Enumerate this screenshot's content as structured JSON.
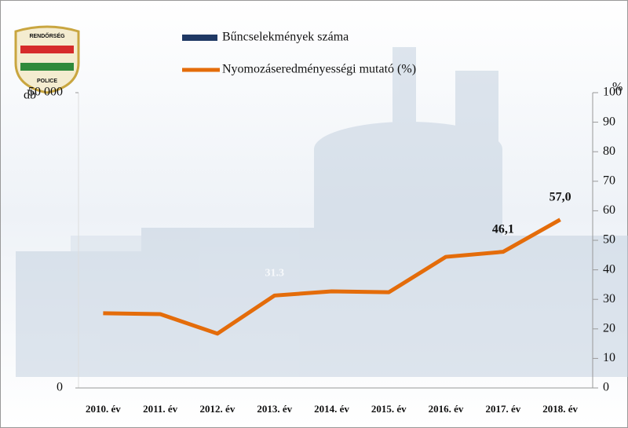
{
  "logo": {
    "top": "RENDŐRSÉG",
    "bottom": "POLICE"
  },
  "chart_data": {
    "type": "combo",
    "y_label": "db",
    "y2_label": "%",
    "categories": [
      "2010. év",
      "2011. év",
      "2012. év",
      "2013. év",
      "2014. év",
      "2015. év",
      "2016. év",
      "2017. év",
      "2018. év"
    ],
    "series": [
      {
        "name": "Bűncselekmények száma",
        "type": "bar",
        "color": "#1f3864",
        "values": [
          null,
          null,
          null,
          null,
          null,
          null,
          null,
          null,
          null
        ]
      },
      {
        "name": "Nyomozáseredményességi mutató (%)",
        "type": "line",
        "axis": "y2",
        "color": "#e46c0a",
        "values": [
          25.3,
          25.0,
          18.4,
          31.3,
          32.7,
          32.4,
          44.4,
          46.1,
          57.0
        ],
        "value_labels": [
          null,
          null,
          null,
          "31.3",
          null,
          null,
          null,
          "46,1",
          "57,0"
        ]
      }
    ],
    "ylim": [
      0,
      50000
    ],
    "yticks": [
      0,
      {
        "value": 50000,
        "label": "50 000"
      }
    ],
    "y2lim": [
      0,
      100
    ],
    "y2ticks": [
      0,
      10,
      20,
      30,
      40,
      50,
      60,
      70,
      80,
      90,
      100
    ]
  }
}
